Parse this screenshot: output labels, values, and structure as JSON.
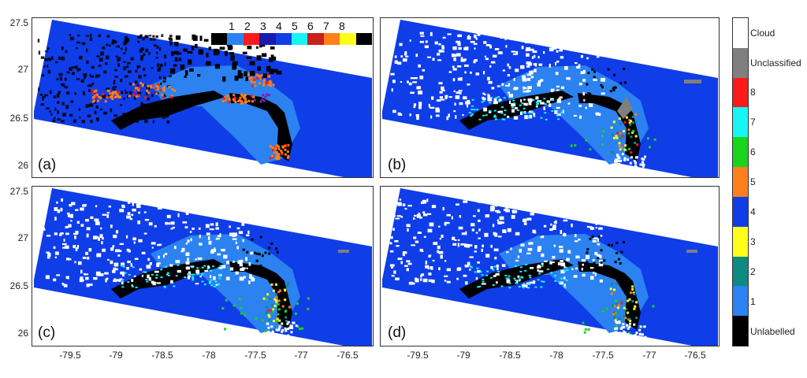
{
  "panels": [
    {
      "label": "(a)",
      "variant": "a"
    },
    {
      "label": "(b)",
      "variant": "b"
    },
    {
      "label": "(c)",
      "variant": "c"
    },
    {
      "label": "(d)",
      "variant": "d"
    }
  ],
  "axes": {
    "y_ticks": [
      "27.5",
      "27",
      "26.5",
      "26"
    ],
    "x_ticks": [
      "-79.5",
      "-79",
      "-78.5",
      "-78",
      "-77.5",
      "-77",
      "-76.5"
    ],
    "x_range": [
      -79.85,
      -76.3
    ],
    "y_range": [
      25.9,
      27.55
    ]
  },
  "colorbar": {
    "entries": [
      {
        "label": "Cloud",
        "color": "#ffffff"
      },
      {
        "label": "Unclassified",
        "color": "#7f7f7f"
      },
      {
        "label": "8",
        "color": "#ff1a1a"
      },
      {
        "label": "7",
        "color": "#19f5f5"
      },
      {
        "label": "6",
        "color": "#19d41c"
      },
      {
        "label": "5",
        "color": "#ff7f1c"
      },
      {
        "label": "4",
        "color": "#0f3de8"
      },
      {
        "label": "3",
        "color": "#ffff1a"
      },
      {
        "label": "2",
        "color": "#0e8a80"
      },
      {
        "label": "1",
        "color": "#2b82f0"
      },
      {
        "label": "Unlabelled",
        "color": "#000000"
      }
    ]
  },
  "inset_legend": {
    "numbers": [
      "1",
      "2",
      "3",
      "4",
      "5",
      "6",
      "7",
      "8"
    ],
    "colors": [
      "#000000",
      "#2b82f0",
      "#ff1a1a",
      "#1a1ab0",
      "#0f3de8",
      "#19f5f5",
      "#c8201a",
      "#ff7f1c",
      "#ffff1a",
      "#000000"
    ]
  }
}
